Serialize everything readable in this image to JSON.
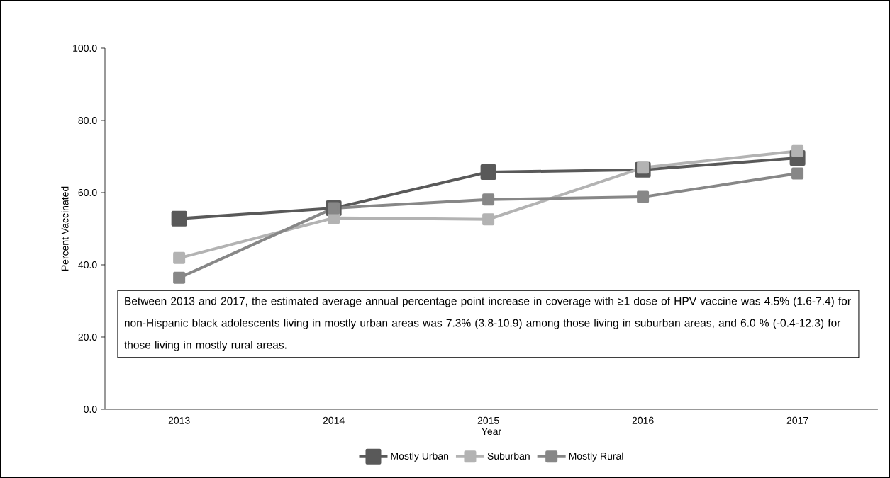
{
  "chart_data": {
    "type": "line",
    "xlabel": "Year",
    "ylabel": "Percent Vaccinated",
    "categories": [
      "2013",
      "2014",
      "2015",
      "2016",
      "2017"
    ],
    "series": [
      {
        "name": "Mostly Urban",
        "color": "#595959",
        "values": [
          52.8,
          55.7,
          65.7,
          66.3,
          69.6
        ]
      },
      {
        "name": "Suburban",
        "color": "#b3b3b3",
        "values": [
          41.9,
          53.0,
          52.6,
          66.9,
          71.5
        ]
      },
      {
        "name": "Mostly Rural",
        "color": "#878787",
        "values": [
          36.4,
          55.7,
          58.1,
          58.8,
          65.3
        ]
      }
    ],
    "ylim": [
      0,
      100
    ],
    "yticks": [
      {
        "value": 0,
        "label": "0.0"
      },
      {
        "value": 20,
        "label": "20.0"
      },
      {
        "value": 40,
        "label": "40.0"
      },
      {
        "value": 60,
        "label": "60.0"
      },
      {
        "value": 80,
        "label": "80.0"
      },
      {
        "value": 100,
        "label": "100.0"
      }
    ],
    "annotations": [
      "Between 2013 and 2017, the estimated average annual percentage point increase in coverage with ≥1 dose of HPV vaccine was 4.5% (1.6-7.4) for non-Hispanic black adolescents living in mostly urban areas was 7.3% (3.8-10.9) among those living in suburban areas, and 6.0 % (-0.4-12.3) for those living in mostly rural areas."
    ],
    "legend": "bottom",
    "marker": "square",
    "line_style": "solid",
    "grid": false
  }
}
